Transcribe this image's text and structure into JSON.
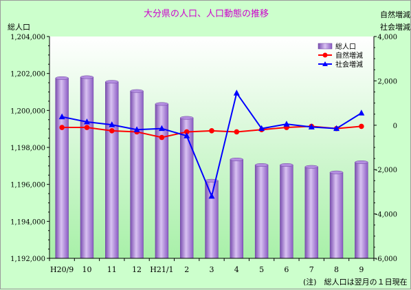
{
  "chart_data": {
    "type": "bar+line",
    "title": "大分県の人口、人口動態の推移",
    "left_axis_label": "総人口",
    "right_axis_label_top": "自然増減",
    "right_axis_label_bottom": "社会増減",
    "note": "(注)　総人口は翌月の１日現在",
    "categories": [
      "H20/9",
      "10",
      "11",
      "12",
      "H21/1",
      "2",
      "3",
      "4",
      "5",
      "6",
      "7",
      "8",
      "9"
    ],
    "left_axis": {
      "min": 1192000,
      "max": 1204000,
      "ticks": [
        "1,192,000",
        "1,194,000",
        "1,196,000",
        "1,198,000",
        "1,200,000",
        "1,202,000",
        "1,204,000"
      ]
    },
    "right_axis": {
      "min": -6000,
      "max": 4000,
      "ticks": [
        "-6,000",
        "-4,000",
        "-2,000",
        "0",
        "2,000",
        "4,000"
      ]
    },
    "legend": [
      "総人口",
      "自然増減",
      "社会増減"
    ],
    "series": [
      {
        "name": "総人口",
        "kind": "bar",
        "axis": "left",
        "color": "#9966cc",
        "values": [
          1201750,
          1201800,
          1201550,
          1201050,
          1200350,
          1199600,
          1196200,
          1197350,
          1197050,
          1197050,
          1196950,
          1196650,
          1197200
        ]
      },
      {
        "name": "自然増減",
        "kind": "line",
        "axis": "right",
        "color": "#ff0000",
        "values": [
          -100,
          -100,
          -250,
          -300,
          -550,
          -300,
          -250,
          -300,
          -200,
          -100,
          -50,
          -150,
          -50
        ]
      },
      {
        "name": "社会増減",
        "kind": "line",
        "axis": "right",
        "color": "#0000ff",
        "values": [
          380,
          150,
          20,
          -200,
          -150,
          -480,
          -3200,
          1450,
          -150,
          50,
          -80,
          -150,
          550
        ]
      }
    ]
  }
}
